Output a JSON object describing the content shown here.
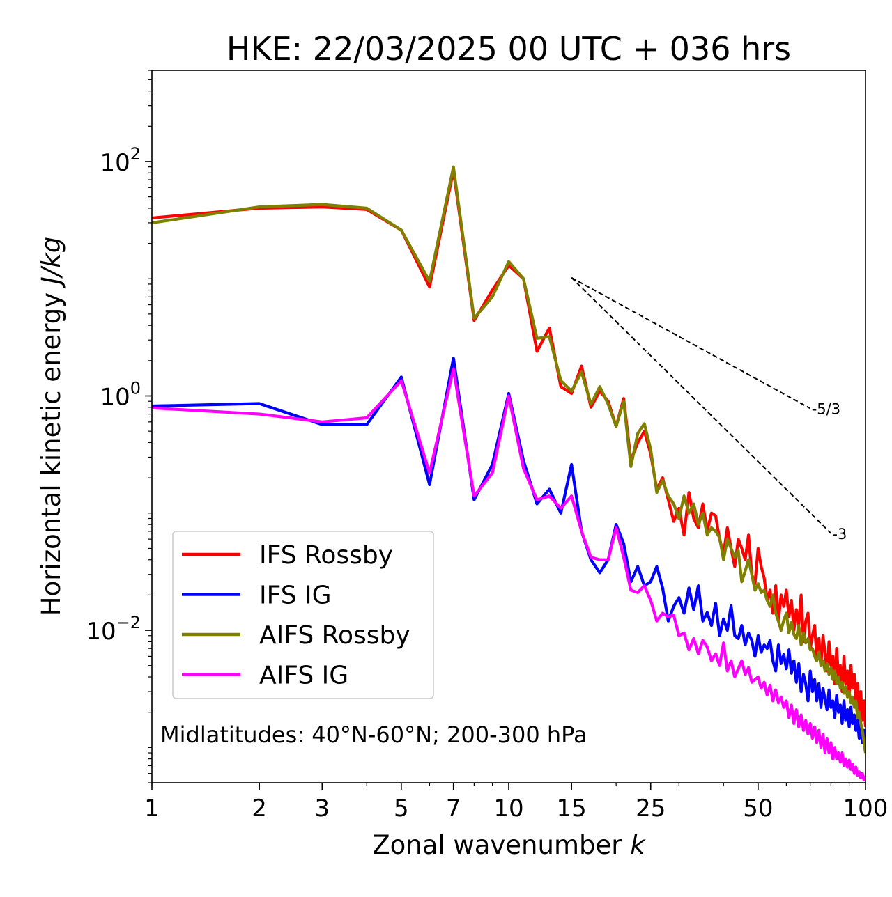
{
  "chart_data": {
    "type": "line",
    "title": "HKE: 22/03/2025 00 UTC + 036 hrs",
    "xlabel_main": "Zonal wavenumber ",
    "xlabel_italic": "k",
    "ylabel_main": "Horizontal kinetic energy ",
    "ylabel_italic": "J/kg",
    "x_scale": "log",
    "y_scale": "log",
    "xlim": [
      1,
      100
    ],
    "ylim": [
      0.0005,
      600
    ],
    "x_ticks": [
      1,
      2,
      3,
      5,
      7,
      10,
      15,
      25,
      50,
      100
    ],
    "x_tick_labels": [
      "1",
      "2",
      "3",
      "5",
      "7",
      "10",
      "15",
      "25",
      "50",
      "100"
    ],
    "y_ticks": [
      100,
      1,
      0.01
    ],
    "y_tick_labels": [
      {
        "base": "10",
        "exp": "2"
      },
      {
        "base": "10",
        "exp": "0"
      },
      {
        "base": "10",
        "exp": "−2"
      }
    ],
    "annotation": "Midlatitudes: 40°N-60°N; 200-300 hPa",
    "legend_position": "lower-left",
    "reference_lines": [
      {
        "label": "-5/3",
        "slope": -1.6667,
        "x_start": 15,
        "x_end": 70,
        "y_start": 10.2,
        "color": "#000000"
      },
      {
        "label": "-3",
        "slope": -3,
        "x_start": 15,
        "x_end": 80,
        "y_start": 10.2,
        "color": "#000000"
      }
    ],
    "series": [
      {
        "name": "IFS Rossby",
        "color": "#ff0000",
        "x": [
          1,
          2,
          3,
          4,
          5,
          6,
          7,
          8,
          9,
          10,
          11,
          12,
          13,
          14,
          15,
          16,
          17,
          18,
          19,
          20,
          21,
          22,
          23,
          24,
          25,
          26,
          27,
          28,
          29,
          30,
          31,
          32,
          33,
          34,
          35,
          36,
          37,
          38,
          39,
          40,
          41,
          42,
          43,
          44,
          45,
          46,
          47,
          48,
          49,
          50,
          51,
          52,
          53,
          54,
          55,
          56,
          57,
          58,
          59,
          60,
          61,
          62,
          63,
          64,
          65,
          66,
          67,
          68,
          69,
          70,
          71,
          72,
          73,
          74,
          75,
          76,
          77,
          78,
          79,
          80,
          81,
          82,
          83,
          84,
          85,
          86,
          87,
          88,
          89,
          90,
          91,
          92,
          93,
          94,
          95,
          96,
          97,
          98,
          99,
          100
        ],
        "y": [
          33,
          40,
          41,
          39,
          26,
          8.5,
          84,
          4.4,
          8,
          13,
          10,
          2.4,
          3.8,
          1.2,
          1.05,
          1.8,
          0.8,
          1.1,
          0.9,
          0.55,
          0.95,
          0.28,
          0.4,
          0.5,
          0.32,
          0.16,
          0.2,
          0.13,
          0.085,
          0.11,
          0.065,
          0.15,
          0.09,
          0.075,
          0.12,
          0.07,
          0.1,
          0.095,
          0.06,
          0.045,
          0.075,
          0.05,
          0.035,
          0.06,
          0.05,
          0.04,
          0.065,
          0.03,
          0.025,
          0.05,
          0.035,
          0.028,
          0.018,
          0.022,
          0.014,
          0.024,
          0.012,
          0.02,
          0.016,
          0.022,
          0.013,
          0.018,
          0.01,
          0.015,
          0.011,
          0.02,
          0.008,
          0.012,
          0.014,
          0.007,
          0.009,
          0.011,
          0.006,
          0.0085,
          0.005,
          0.009,
          0.0065,
          0.0045,
          0.008,
          0.005,
          0.006,
          0.0035,
          0.007,
          0.004,
          0.005,
          0.003,
          0.006,
          0.0035,
          0.0045,
          0.0028,
          0.005,
          0.0032,
          0.0042,
          0.0025,
          0.0035,
          0.002,
          0.003,
          0.0017,
          0.0025,
          0.0015
        ]
      },
      {
        "name": "IFS IG",
        "color": "#0000ff",
        "x": [
          1,
          2,
          3,
          4,
          5,
          6,
          7,
          8,
          9,
          10,
          11,
          12,
          13,
          14,
          15,
          16,
          17,
          18,
          19,
          20,
          21,
          22,
          23,
          24,
          25,
          26,
          27,
          28,
          29,
          30,
          31,
          32,
          33,
          34,
          35,
          36,
          37,
          38,
          39,
          40,
          41,
          42,
          43,
          44,
          45,
          46,
          47,
          48,
          49,
          50,
          51,
          52,
          53,
          54,
          55,
          56,
          57,
          58,
          59,
          60,
          61,
          62,
          63,
          64,
          65,
          66,
          67,
          68,
          69,
          70,
          71,
          72,
          73,
          74,
          75,
          76,
          77,
          78,
          79,
          80,
          81,
          82,
          83,
          84,
          85,
          86,
          87,
          88,
          89,
          90,
          91,
          92,
          93,
          94,
          95,
          96,
          97,
          98,
          99,
          100
        ],
        "y": [
          0.82,
          0.86,
          0.57,
          0.57,
          1.45,
          0.175,
          2.1,
          0.13,
          0.26,
          1.05,
          0.28,
          0.12,
          0.16,
          0.1,
          0.26,
          0.07,
          0.04,
          0.031,
          0.04,
          0.08,
          0.055,
          0.026,
          0.035,
          0.024,
          0.026,
          0.035,
          0.023,
          0.012,
          0.016,
          0.019,
          0.014,
          0.023,
          0.015,
          0.024,
          0.012,
          0.0142,
          0.011,
          0.017,
          0.009,
          0.0125,
          0.01,
          0.0162,
          0.009,
          0.0085,
          0.011,
          0.0075,
          0.0095,
          0.0082,
          0.006,
          0.009,
          0.0065,
          0.0075,
          0.007,
          0.0082,
          0.0055,
          0.0045,
          0.0075,
          0.0052,
          0.0062,
          0.0047,
          0.0068,
          0.0043,
          0.0055,
          0.0036,
          0.0052,
          0.003,
          0.0042,
          0.0035,
          0.0025,
          0.0045,
          0.003,
          0.0038,
          0.0025,
          0.0035,
          0.0022,
          0.0032,
          0.0026,
          0.0021,
          0.0031,
          0.0022,
          0.0025,
          0.0018,
          0.0028,
          0.002,
          0.0023,
          0.0016,
          0.0025,
          0.0017,
          0.0021,
          0.0015,
          0.0022,
          0.0016,
          0.0019,
          0.0014,
          0.0017,
          0.0012,
          0.0016,
          0.0011,
          0.0014,
          0.001
        ]
      },
      {
        "name": "AIFS Rossby",
        "color": "#808000",
        "x": [
          1,
          2,
          3,
          4,
          5,
          6,
          7,
          8,
          9,
          10,
          11,
          12,
          13,
          14,
          15,
          16,
          17,
          18,
          19,
          20,
          21,
          22,
          23,
          24,
          25,
          26,
          27,
          28,
          29,
          30,
          31,
          32,
          33,
          34,
          35,
          36,
          37,
          38,
          39,
          40,
          41,
          42,
          43,
          44,
          45,
          46,
          47,
          48,
          49,
          50,
          51,
          52,
          53,
          54,
          55,
          56,
          57,
          58,
          59,
          60,
          61,
          62,
          63,
          64,
          65,
          66,
          67,
          68,
          69,
          70,
          71,
          72,
          73,
          74,
          75,
          76,
          77,
          78,
          79,
          80,
          81,
          82,
          83,
          84,
          85,
          86,
          87,
          88,
          89,
          90,
          91,
          92,
          93,
          94,
          95,
          96,
          97,
          98,
          99,
          100
        ],
        "y": [
          30,
          41,
          43,
          40,
          26,
          9.5,
          90,
          4.6,
          7,
          14,
          10,
          3.1,
          3.2,
          1.35,
          1.1,
          1.6,
          0.85,
          1.2,
          0.85,
          0.55,
          0.9,
          0.25,
          0.48,
          0.58,
          0.35,
          0.15,
          0.19,
          0.14,
          0.12,
          0.09,
          0.14,
          0.1,
          0.12,
          0.08,
          0.1,
          0.065,
          0.075,
          0.07,
          0.062,
          0.04,
          0.06,
          0.05,
          0.042,
          0.048,
          0.026,
          0.032,
          0.04,
          0.03,
          0.022,
          0.025,
          0.021,
          0.022,
          0.018,
          0.016,
          0.02,
          0.014,
          0.012,
          0.01,
          0.0122,
          0.014,
          0.0095,
          0.0118,
          0.0092,
          0.0085,
          0.011,
          0.0075,
          0.0095,
          0.0078,
          0.0085,
          0.0068,
          0.007,
          0.006,
          0.0055,
          0.0065,
          0.005,
          0.0055,
          0.0045,
          0.0052,
          0.0042,
          0.0048,
          0.0038,
          0.0045,
          0.0035,
          0.004,
          0.0032,
          0.0036,
          0.0029,
          0.0033,
          0.0027,
          0.003,
          0.0024,
          0.0027,
          0.0022,
          0.0025,
          0.0018,
          0.002,
          0.0016,
          0.0014,
          0.0011,
          0.0009
        ]
      },
      {
        "name": "AIFS IG",
        "color": "#ff00ff",
        "x": [
          1,
          2,
          3,
          4,
          5,
          6,
          7,
          8,
          9,
          10,
          11,
          12,
          13,
          14,
          15,
          16,
          17,
          18,
          19,
          20,
          21,
          22,
          23,
          24,
          25,
          26,
          27,
          28,
          29,
          30,
          31,
          32,
          33,
          34,
          35,
          36,
          37,
          38,
          39,
          40,
          41,
          42,
          43,
          44,
          45,
          46,
          47,
          48,
          49,
          50,
          51,
          52,
          53,
          54,
          55,
          56,
          57,
          58,
          59,
          60,
          61,
          62,
          63,
          64,
          65,
          66,
          67,
          68,
          69,
          70,
          71,
          72,
          73,
          74,
          75,
          76,
          77,
          78,
          79,
          80,
          81,
          82,
          83,
          84,
          85,
          86,
          87,
          88,
          89,
          90,
          91,
          92,
          93,
          94,
          95,
          96,
          97,
          98,
          99,
          100
        ],
        "y": [
          0.79,
          0.7,
          0.6,
          0.65,
          1.35,
          0.22,
          1.7,
          0.14,
          0.22,
          1.0,
          0.24,
          0.13,
          0.14,
          0.11,
          0.14,
          0.07,
          0.042,
          0.04,
          0.04,
          0.075,
          0.042,
          0.022,
          0.021,
          0.024,
          0.018,
          0.012,
          0.014,
          0.013,
          0.0135,
          0.009,
          0.0095,
          0.0068,
          0.0085,
          0.0063,
          0.0082,
          0.0072,
          0.0055,
          0.0063,
          0.005,
          0.0078,
          0.0045,
          0.0055,
          0.004,
          0.0047,
          0.0055,
          0.0042,
          0.0048,
          0.0036,
          0.0038,
          0.004,
          0.0032,
          0.0036,
          0.0028,
          0.0034,
          0.0025,
          0.0031,
          0.0024,
          0.0027,
          0.0022,
          0.0025,
          0.0018,
          0.0023,
          0.0016,
          0.0021,
          0.0015,
          0.0019,
          0.0014,
          0.0017,
          0.0013,
          0.0016,
          0.0012,
          0.0015,
          0.0011,
          0.0014,
          0.001,
          0.0013,
          0.0009,
          0.0012,
          0.0009,
          0.0011,
          0.0008,
          0.001,
          0.0008,
          0.0009,
          0.00075,
          0.0009,
          0.0007,
          0.0008,
          0.00068,
          0.00078,
          0.00065,
          0.00072,
          0.0006,
          0.00068,
          0.00058,
          0.00062,
          0.00055,
          0.0006,
          0.00053,
          0.00057
        ]
      }
    ]
  }
}
